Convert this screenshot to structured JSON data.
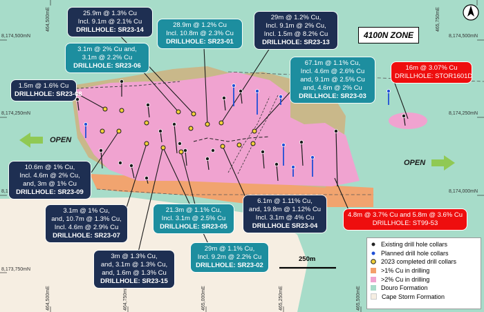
{
  "zone_label": "4100N ZONE",
  "open_labels": [
    "OPEN",
    "OPEN"
  ],
  "scale_label": "250m",
  "coords": {
    "northings": [
      "8,174,500mN",
      "8,174,250mN",
      "8,174,000mN",
      "8,173,750mN",
      "8,174,500mN",
      "8,174,250mN",
      "8,174,000mN"
    ],
    "eastings_top": [
      "464,500mE",
      "465,750mE"
    ],
    "eastings_bottom": [
      "464,500mE",
      "464,750mE",
      "465,000mE",
      "465,250mE",
      "465,500mE"
    ]
  },
  "callouts": [
    {
      "id": "sr23-14",
      "lines": [
        "25.9m @ 1.3% Cu",
        "Incl. 9.1m @ 2.1% Cu",
        "DRILLHOLE: SR23-14"
      ]
    },
    {
      "id": "sr23-01",
      "lines": [
        "28.9m @ 1.2% Cu",
        "Incl. 10.8m @ 2.3% Cu",
        "DRILLHOLE: SR23-01"
      ]
    },
    {
      "id": "sr23-13",
      "lines": [
        "29m @ 1.2% Cu,",
        "Incl. 9.1m @ 2% Cu,",
        "Incl. 1.5m @ 8.2% Cu",
        "DRILLHOLE: SR23-13"
      ]
    },
    {
      "id": "sr23-06",
      "lines": [
        "3.1m @ 2% Cu and,",
        "3.1m @ 2.2% Cu",
        "DRILLHOLE: SR23-06"
      ]
    },
    {
      "id": "sr23-08",
      "lines": [
        "1.5m @ 1.6% Cu",
        "DRILLHOLE: SR23-08"
      ]
    },
    {
      "id": "sr23-03",
      "lines": [
        "67.1m @ 1.1% Cu,",
        "Incl. 4.6m @ 2.6% Cu",
        "and, 9.1m @ 2.5% Cu",
        "and, 4.6m @ 2% Cu",
        "DRILLHOLE: SR23-03"
      ]
    },
    {
      "id": "stor1601d",
      "lines": [
        "16m @ 3.07% Cu",
        "DRILLHOLE: STOR1601D"
      ]
    },
    {
      "id": "sr23-09",
      "lines": [
        "10.6m @ 1% Cu,",
        "Incl. 4.6m @ 2% Cu,",
        "and, 3m @ 1% Cu",
        "DRILLHOLE: SR23-09"
      ]
    },
    {
      "id": "sr23-07",
      "lines": [
        "3.1m @ 1% Cu,",
        "and, 10.7m @ 1.3% Cu,",
        "Incl. 4.6m @ 2.9% Cu",
        "DRILLHOLE: SR23-07"
      ]
    },
    {
      "id": "sr23-05",
      "lines": [
        "21.3m @ 1.1% Cu,",
        "Incl. 3.1m @ 2.5% Cu",
        "DRILLHOLE: SR23-05"
      ]
    },
    {
      "id": "sr23-04",
      "lines": [
        "6.1m @ 1.11% Cu,",
        "and, 19.8m @ 1.12% Cu",
        "Incl. 3.1m @ 4% Cu",
        "DRILLHOLE SR23-04"
      ]
    },
    {
      "id": "st99-53",
      "lines": [
        "4.8m @ 3.7% Cu and 5.8m @ 3.6% Cu",
        "DRILLHOLE: ST99-53"
      ]
    },
    {
      "id": "sr23-02",
      "lines": [
        "29m @ 1.1% Cu,",
        "Incl. 9.2m @ 2.2% Cu",
        "DRILLHOLE: SR23-02"
      ]
    },
    {
      "id": "sr23-15",
      "lines": [
        "3m @ 1.3% Cu,",
        "and, 3.1m @ 1.3% Cu,",
        "and, 1.6m @ 1.3% Cu",
        "DRILLHOLE: SR23-15"
      ]
    }
  ],
  "legend": [
    {
      "key": "existing",
      "label": "Existing drill hole collars",
      "color": "#222222"
    },
    {
      "key": "planned",
      "label": "Planned drill hole collars",
      "color": "#1f4fd6"
    },
    {
      "key": "completed",
      "label": "2023 completed drill collars",
      "color": "#f2d13a"
    },
    {
      "key": "cu1",
      "label": ">1% Cu in drilling",
      "color": "#f4a06a"
    },
    {
      "key": "cu2",
      "label": ">2% Cu in drilling",
      "color": "#f0a3d0"
    },
    {
      "key": "douro",
      "label": "Douro Formation",
      "color": "#a7dcc9"
    },
    {
      "key": "cape",
      "label": "Cape Storm Formation",
      "color": "#f6eee2"
    }
  ],
  "colors": {
    "douro": "#a7dcc9",
    "cape_storm": "#f6eee2",
    "cu1": "#f4a06a",
    "cu2": "#f0a3d0",
    "khaki": "#c9b88a",
    "navy": "#1e2f52",
    "teal": "#1d8e9f",
    "red": "#ee0e0e"
  },
  "icons": [
    "north-arrow-icon",
    "open-arrow-left-icon",
    "open-arrow-right-icon"
  ]
}
